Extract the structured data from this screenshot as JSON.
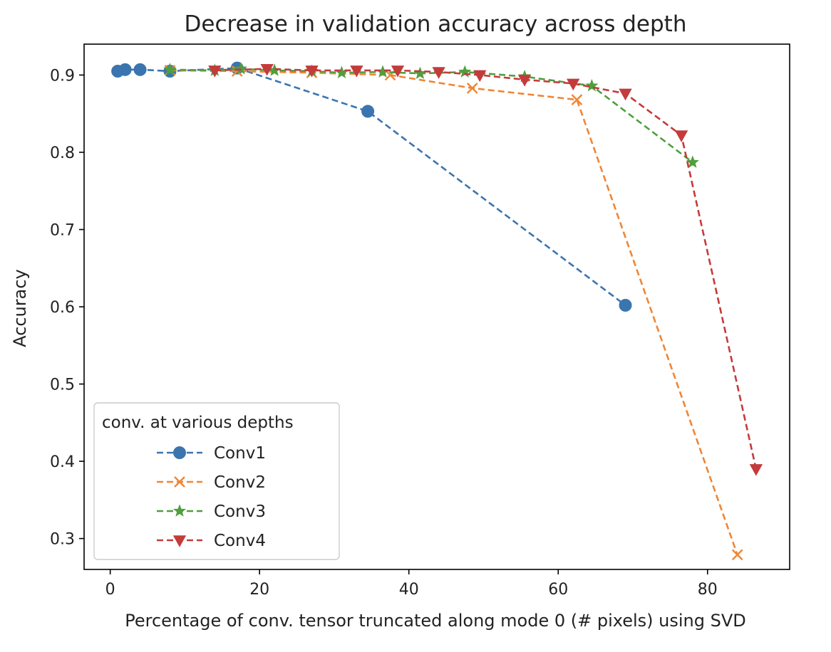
{
  "chart_data": {
    "type": "line",
    "title": "Decrease in validation accuracy across depth",
    "xlabel": "Percentage of conv. tensor truncated along mode 0 (# pixels) using SVD",
    "ylabel": "Accuracy",
    "xlim": [
      -3.5,
      91
    ],
    "ylim": [
      0.26,
      0.94
    ],
    "xticks": [
      0,
      20,
      40,
      60,
      80
    ],
    "yticks": [
      0.3,
      0.4,
      0.5,
      0.6,
      0.7,
      0.8,
      0.9
    ],
    "xtick_labels": [
      "0",
      "20",
      "40",
      "60",
      "80"
    ],
    "ytick_labels": [
      "0.3",
      "0.4",
      "0.5",
      "0.6",
      "0.7",
      "0.8",
      "0.9"
    ],
    "grid": false,
    "legend": {
      "title": "conv. at various depths",
      "placement": "lower-left"
    },
    "series": [
      {
        "name": "Conv1",
        "color": "#3b75af",
        "marker": "circle",
        "linestyle": "dashed",
        "x": [
          1.0,
          2.0,
          4.0,
          8.0,
          17.0,
          34.5,
          69.0
        ],
        "y": [
          0.905,
          0.907,
          0.907,
          0.905,
          0.909,
          0.853,
          0.602
        ]
      },
      {
        "name": "Conv2",
        "color": "#ef8636",
        "marker": "x",
        "linestyle": "dashed",
        "x": [
          8.0,
          17.0,
          27.0,
          37.5,
          48.5,
          62.5,
          84.0
        ],
        "y": [
          0.906,
          0.905,
          0.903,
          0.9,
          0.883,
          0.868,
          0.279
        ]
      },
      {
        "name": "Conv3",
        "color": "#519e3e",
        "marker": "star",
        "linestyle": "dashed",
        "x": [
          8.0,
          14.0,
          17.5,
          22.0,
          27.0,
          31.0,
          36.5,
          41.5,
          47.5,
          55.5,
          64.5,
          78.0
        ],
        "y": [
          0.907,
          0.906,
          0.908,
          0.906,
          0.905,
          0.903,
          0.904,
          0.902,
          0.904,
          0.898,
          0.886,
          0.787
        ]
      },
      {
        "name": "Conv4",
        "color": "#c43b3b",
        "marker": "triangle-down",
        "linestyle": "dashed",
        "x": [
          14.0,
          21.0,
          27.0,
          33.0,
          38.5,
          44.0,
          49.5,
          55.5,
          62.0,
          69.0,
          76.5,
          86.5
        ],
        "y": [
          0.906,
          0.908,
          0.906,
          0.906,
          0.906,
          0.904,
          0.9,
          0.894,
          0.889,
          0.876,
          0.822,
          0.39
        ]
      }
    ]
  }
}
